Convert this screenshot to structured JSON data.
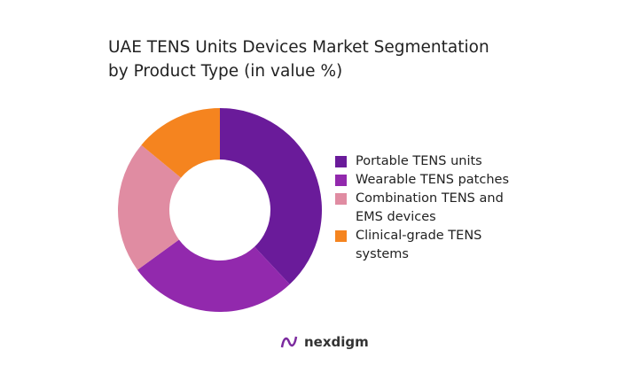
{
  "chart_data": {
    "type": "donut",
    "title": "UAE TENS Units Devices Market Segmentation by Product Type (in value %)",
    "categories": [
      "Portable TENS units",
      "Wearable TENS patches",
      "Combination TENS and EMS devices",
      "Clinical-grade TENS systems"
    ],
    "values": [
      38,
      27,
      21,
      14
    ],
    "colors": [
      "#6a1b9a",
      "#9229ad",
      "#e08ca2",
      "#f5841f"
    ],
    "legend": "right"
  },
  "brand": "nexdigm"
}
